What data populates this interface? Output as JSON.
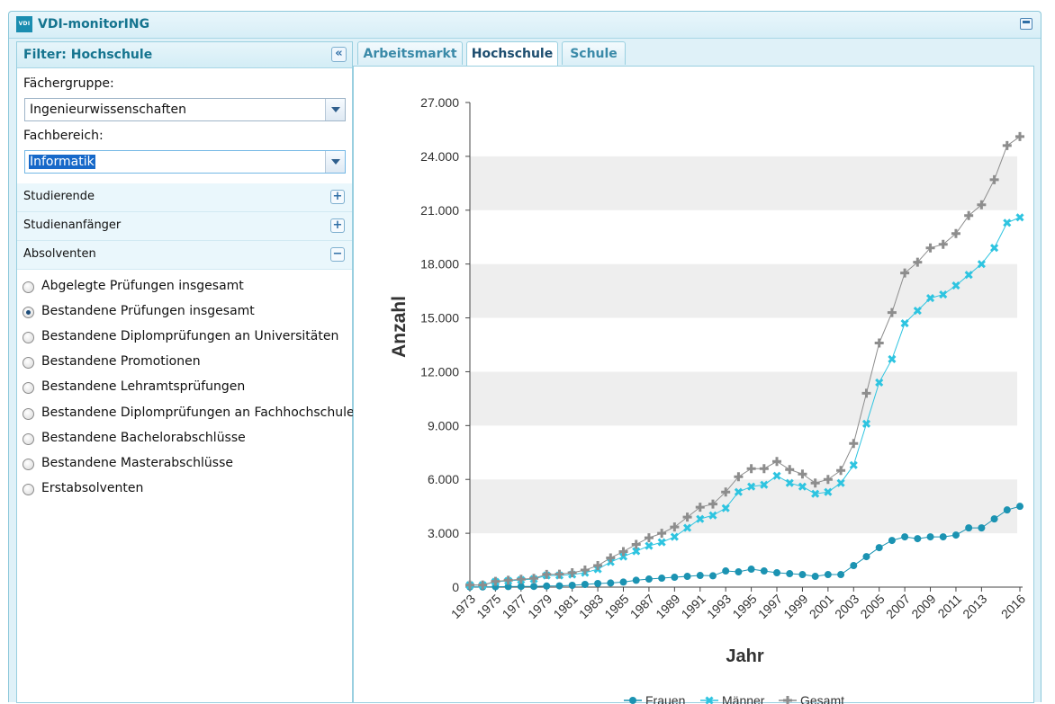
{
  "app": {
    "logo": "VDI",
    "title": "VDI-monitorING",
    "maximize_icon": "maximize-icon"
  },
  "filter": {
    "title": "Filter: Hochschule",
    "collapse_icon": "double-chevron-left-icon",
    "faechergruppe_label": "Fächergruppe:",
    "faechergruppe_value": "Ingenieurwissenschaften",
    "fachbereich_label": "Fachbereich:",
    "fachbereich_value": "Informatik",
    "sections": [
      {
        "label": "Studierende",
        "icon": "plus-icon"
      },
      {
        "label": "Studienanfänger",
        "icon": "plus-icon"
      },
      {
        "label": "Absolventen",
        "icon": "minus-icon"
      }
    ],
    "options": [
      {
        "label": "Abgelegte Prüfungen insgesamt",
        "selected": false
      },
      {
        "label": "Bestandene Prüfungen insgesamt",
        "selected": true
      },
      {
        "label": "Bestandene Diplomprüfungen an Universitäten",
        "selected": false
      },
      {
        "label": "Bestandene Promotionen",
        "selected": false
      },
      {
        "label": "Bestandene Lehramtsprüfungen",
        "selected": false
      },
      {
        "label": "Bestandene Diplomprüfungen an Fachhochschulen",
        "selected": false
      },
      {
        "label": "Bestandene Bachelorabschlüsse",
        "selected": false
      },
      {
        "label": "Bestandene Masterabschlüsse",
        "selected": false
      },
      {
        "label": "Erstabsolventen",
        "selected": false
      }
    ]
  },
  "tabs": [
    {
      "label": "Arbeitsmarkt",
      "active": false
    },
    {
      "label": "Hochschule",
      "active": true
    },
    {
      "label": "Schule",
      "active": false
    }
  ],
  "chart_data": {
    "type": "line",
    "xlabel": "Jahr",
    "ylabel": "Anzahl",
    "ylim": [
      0,
      27000
    ],
    "yticks": [
      "0",
      "3.000",
      "6.000",
      "9.000",
      "12.000",
      "15.000",
      "18.000",
      "21.000",
      "24.000",
      "27.000"
    ],
    "x": [
      1973,
      1974,
      1975,
      1976,
      1977,
      1978,
      1979,
      1980,
      1981,
      1982,
      1983,
      1984,
      1985,
      1986,
      1987,
      1988,
      1989,
      1990,
      1991,
      1992,
      1993,
      1994,
      1995,
      1996,
      1997,
      1998,
      1999,
      2000,
      2001,
      2002,
      2003,
      2004,
      2005,
      2006,
      2007,
      2008,
      2009,
      2010,
      2011,
      2012,
      2013,
      2014,
      2015,
      2016
    ],
    "xtick_labels": [
      "1973",
      "1975",
      "1977",
      "1979",
      "1981",
      "1983",
      "1985",
      "1987",
      "1989",
      "1991",
      "1993",
      "1995",
      "1997",
      "1999",
      "2001",
      "2003",
      "2005",
      "2007",
      "2009",
      "2011",
      "2013",
      "2016"
    ],
    "grid": "alternating horizontal bands",
    "legend": "bottom-center",
    "series": [
      {
        "name": "Frauen",
        "color": "#1b93b2",
        "marker": "circle",
        "values": [
          10,
          10,
          20,
          30,
          40,
          40,
          60,
          70,
          100,
          150,
          200,
          230,
          280,
          380,
          450,
          500,
          550,
          600,
          650,
          630,
          900,
          850,
          1000,
          900,
          800,
          750,
          700,
          600,
          700,
          700,
          1200,
          1700,
          2200,
          2600,
          2800,
          2700,
          2800,
          2800,
          2900,
          3300,
          3300,
          3800,
          4300,
          4500
        ]
      },
      {
        "name": "Männer",
        "color": "#2ec4e0",
        "marker": "x",
        "values": [
          110,
          110,
          300,
          350,
          400,
          450,
          650,
          650,
          700,
          800,
          1000,
          1400,
          1700,
          2000,
          2300,
          2500,
          2800,
          3300,
          3800,
          4000,
          4400,
          5300,
          5600,
          5700,
          6200,
          5800,
          5600,
          5200,
          5300,
          5800,
          6800,
          9100,
          11400,
          12700,
          14700,
          15400,
          16100,
          16300,
          16800,
          17400,
          18000,
          18900,
          20300,
          20600
        ]
      },
      {
        "name": "Gesamt",
        "color": "#8d8d8d",
        "marker": "plus",
        "values": [
          120,
          120,
          320,
          380,
          440,
          490,
          710,
          720,
          800,
          950,
          1200,
          1630,
          1980,
          2380,
          2750,
          3000,
          3350,
          3900,
          4450,
          4630,
          5300,
          6150,
          6600,
          6600,
          7000,
          6550,
          6300,
          5800,
          6000,
          6500,
          8000,
          10800,
          13600,
          15300,
          17500,
          18100,
          18900,
          19100,
          19700,
          20700,
          21300,
          22700,
          24600,
          25100
        ]
      }
    ]
  }
}
